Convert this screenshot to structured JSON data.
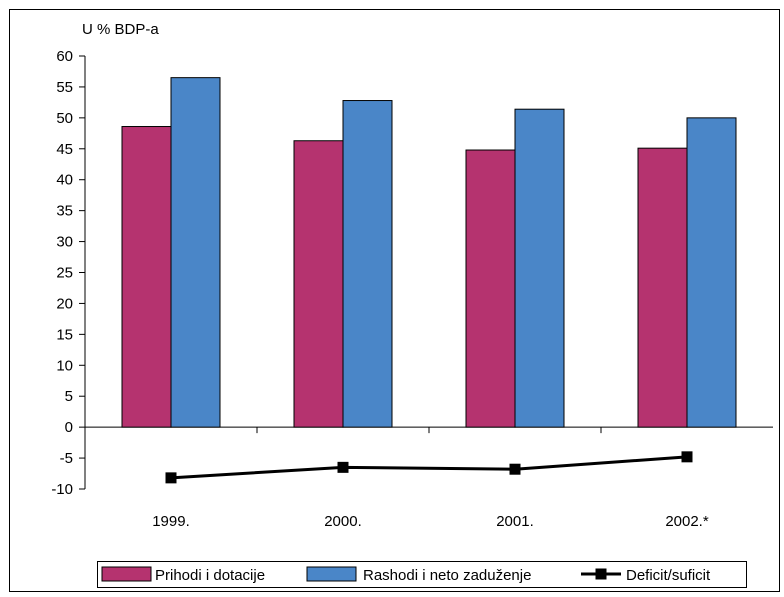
{
  "chart_data": {
    "type": "bar",
    "unit_label": "U % BDP-a",
    "categories": [
      "1999.",
      "2000.",
      "2001.",
      "2002.*"
    ],
    "series": [
      {
        "name": "Prihodi i dotacije",
        "type": "bar",
        "color": "#b5336f",
        "values": [
          48.6,
          46.3,
          44.8,
          45.1
        ]
      },
      {
        "name": "Rashodi i neto zaduženje",
        "type": "bar",
        "color": "#4a86c8",
        "values": [
          56.5,
          52.8,
          51.4,
          50.0
        ]
      },
      {
        "name": "Deficit/suficit",
        "type": "line",
        "color": "#000000",
        "values": [
          -8.2,
          -6.5,
          -6.8,
          -4.8
        ]
      }
    ],
    "ylim": [
      -10,
      60
    ],
    "yticks": [
      "60",
      "55",
      "50",
      "45",
      "40",
      "35",
      "30",
      "25",
      "20",
      "15",
      "10",
      "5",
      "0",
      "-5",
      "-10"
    ],
    "grid": false,
    "legend_position": "bottom"
  }
}
